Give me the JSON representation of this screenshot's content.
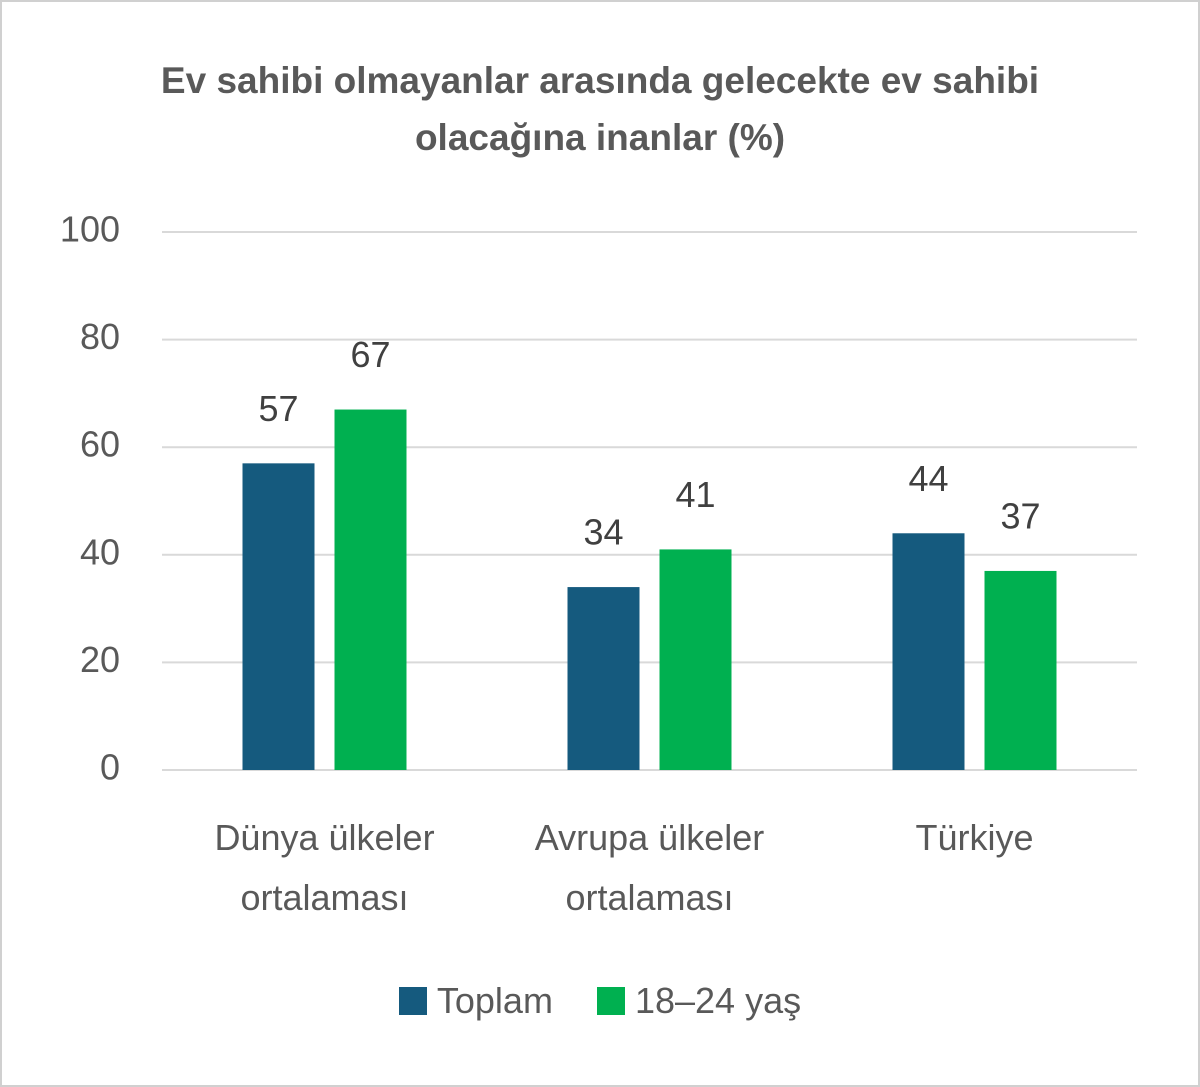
{
  "chart_data": {
    "type": "bar",
    "title": "Ev sahibi olmayanlar arasında gelecekte ev sahibi olacağına inanlar (%)",
    "categories": [
      "Dünya ülkeler ortalaması",
      "Avrupa ülkeler ortalaması",
      "Türkiye"
    ],
    "series": [
      {
        "name": "Toplam",
        "color": "#155a7e",
        "values": [
          57,
          34,
          44
        ]
      },
      {
        "name": "18–24 yaş",
        "color": "#00b050",
        "values": [
          67,
          41,
          37
        ]
      }
    ],
    "ylim": [
      0,
      100
    ],
    "yticks": [
      0,
      20,
      40,
      60,
      80,
      100
    ],
    "grid": true,
    "legend": "bottom"
  }
}
